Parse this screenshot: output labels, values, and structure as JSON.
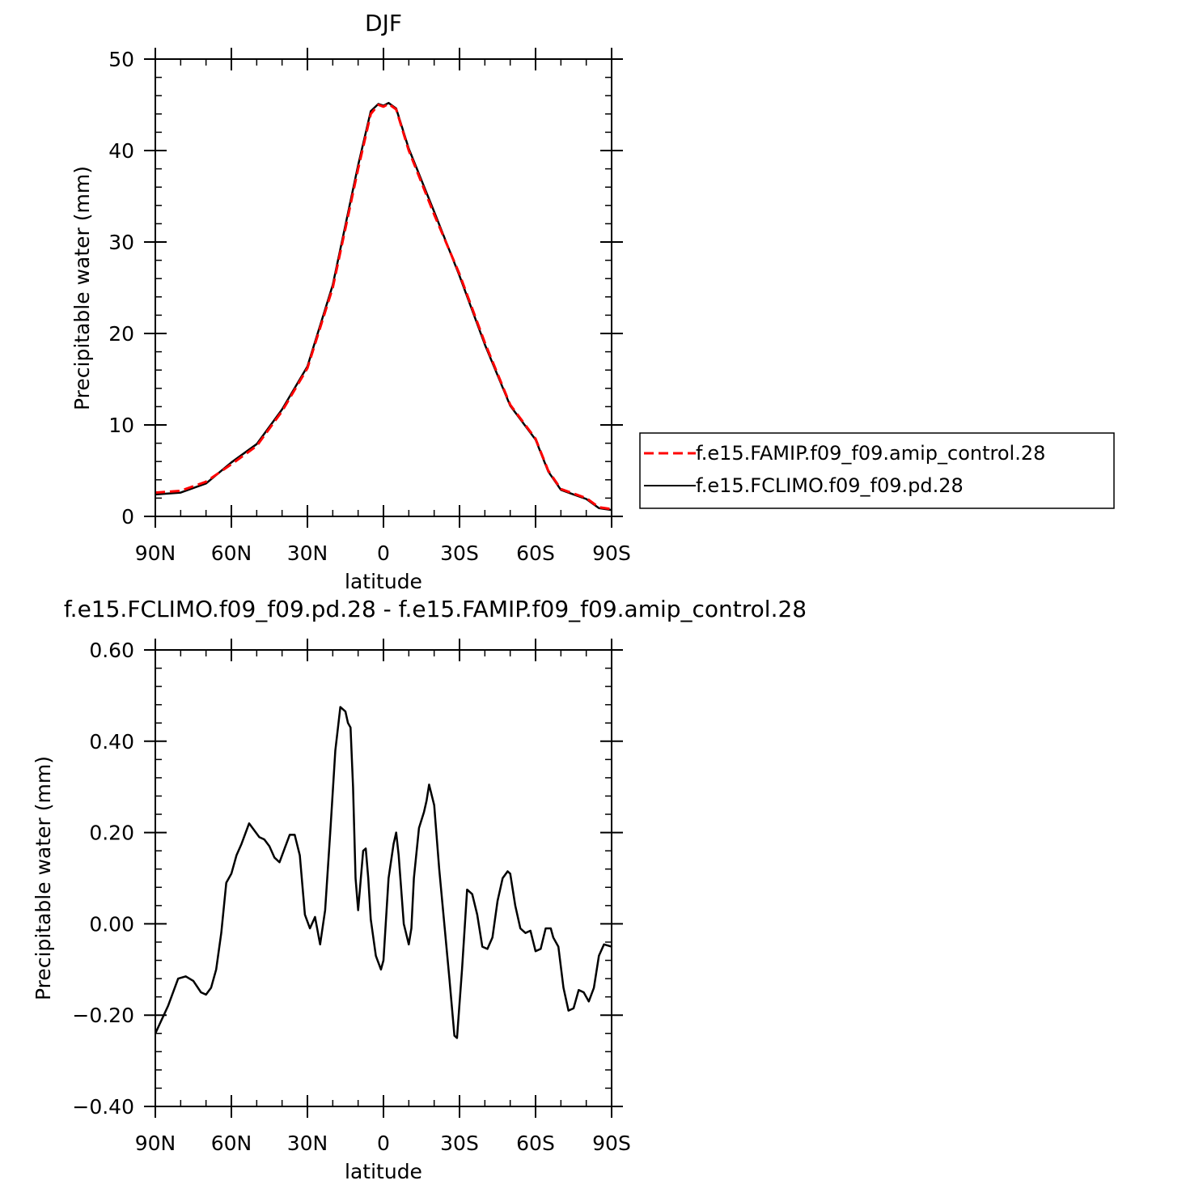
{
  "chart_data": [
    {
      "type": "line",
      "title": "DJF",
      "xlabel": "latitude",
      "ylabel": "Precipitable water (mm)",
      "xlim": [
        90,
        -90
      ],
      "ylim": [
        0,
        50
      ],
      "xticks": [
        90,
        60,
        30,
        0,
        -30,
        -60,
        -90
      ],
      "xtick_labels": [
        "90N",
        "60N",
        "30N",
        "0",
        "30S",
        "60S",
        "90S"
      ],
      "yticks": [
        0,
        10,
        20,
        30,
        40,
        50
      ],
      "ytick_labels": [
        "0",
        "10",
        "20",
        "30",
        "40",
        "50"
      ],
      "legend_position": "right",
      "series": [
        {
          "name": "f.e15.FAMIP.f09_f09.amip_control.28",
          "color": "#ff0000",
          "style": "dashed",
          "x": [
            90,
            80,
            70,
            60,
            50,
            40,
            30,
            20,
            10,
            5,
            2,
            0,
            -2,
            -5,
            -10,
            -20,
            -30,
            -40,
            -50,
            -60,
            -65,
            -70,
            -75,
            -80,
            -85,
            -90
          ],
          "y": [
            2.6,
            2.8,
            3.8,
            5.7,
            7.7,
            11.5,
            16.2,
            25.0,
            38.0,
            44.0,
            45.0,
            44.8,
            45.1,
            44.5,
            40.0,
            33.0,
            26.5,
            19.0,
            12.2,
            8.5,
            5.0,
            3.0,
            2.5,
            2.0,
            1.0,
            0.8
          ]
        },
        {
          "name": "f.e15.FCLIMO.f09_f09.pd.28",
          "color": "#000000",
          "style": "solid",
          "x": [
            90,
            80,
            70,
            60,
            50,
            40,
            30,
            20,
            10,
            5,
            2,
            0,
            -2,
            -5,
            -10,
            -20,
            -30,
            -40,
            -50,
            -60,
            -65,
            -70,
            -75,
            -80,
            -85,
            -90
          ],
          "y": [
            2.4,
            2.6,
            3.6,
            5.9,
            7.9,
            11.7,
            16.4,
            25.3,
            38.4,
            44.3,
            45.1,
            44.9,
            45.2,
            44.6,
            40.2,
            33.3,
            26.3,
            18.8,
            12.1,
            8.4,
            4.9,
            2.9,
            2.4,
            1.9,
            0.9,
            0.7
          ]
        }
      ]
    },
    {
      "type": "line",
      "title": "f.e15.FCLIMO.f09_f09.pd.28 - f.e15.FAMIP.f09_f09.amip_control.28",
      "xlabel": "latitude",
      "ylabel": "Precipitable water (mm)",
      "xlim": [
        90,
        -90
      ],
      "ylim": [
        -0.4,
        0.6
      ],
      "xticks": [
        90,
        60,
        30,
        0,
        -30,
        -60,
        -90
      ],
      "xtick_labels": [
        "90N",
        "60N",
        "30N",
        "0",
        "30S",
        "60S",
        "90S"
      ],
      "yticks": [
        -0.4,
        -0.2,
        0.0,
        0.2,
        0.4,
        0.6
      ],
      "ytick_labels": [
        "−0.40",
        "−0.20",
        "0.00",
        "0.20",
        "0.40",
        "0.60"
      ],
      "series": [
        {
          "color": "#000000",
          "style": "solid",
          "x": [
            90,
            85,
            81,
            78,
            75,
            72,
            70,
            68,
            66,
            64,
            62,
            60,
            58,
            56,
            53,
            51,
            49,
            47,
            45,
            43,
            41,
            39,
            37,
            35,
            33,
            31,
            29,
            27,
            25,
            23,
            21,
            19,
            17,
            15,
            14,
            13,
            12,
            11,
            10,
            8,
            7,
            6,
            5,
            3,
            1,
            0,
            -2,
            -4,
            -5,
            -6,
            -8,
            -10,
            -11,
            -12,
            -14,
            -16,
            -17,
            -18,
            -20,
            -22,
            -24,
            -26,
            -28,
            -29,
            -31,
            -33,
            -35,
            -37,
            -39,
            -41,
            -43,
            -45,
            -47,
            -49,
            -50,
            -52,
            -54,
            -56,
            -58,
            -60,
            -62,
            -64,
            -66,
            -67,
            -69,
            -71,
            -73,
            -75,
            -77,
            -79,
            -81,
            -83,
            -85,
            -87,
            -90
          ],
          "y": [
            -0.24,
            -0.18,
            -0.12,
            -0.115,
            -0.125,
            -0.15,
            -0.155,
            -0.14,
            -0.1,
            -0.02,
            0.09,
            0.11,
            0.15,
            0.175,
            0.22,
            0.205,
            0.19,
            0.185,
            0.17,
            0.145,
            0.135,
            0.165,
            0.195,
            0.195,
            0.15,
            0.02,
            -0.01,
            0.015,
            -0.045,
            0.03,
            0.2,
            0.38,
            0.475,
            0.465,
            0.44,
            0.43,
            0.3,
            0.1,
            0.03,
            0.16,
            0.165,
            0.1,
            0.01,
            -0.07,
            -0.1,
            -0.08,
            0.1,
            0.175,
            0.2,
            0.15,
            0.0,
            -0.045,
            -0.01,
            0.1,
            0.21,
            0.245,
            0.27,
            0.305,
            0.26,
            0.12,
            0.0,
            -0.12,
            -0.245,
            -0.25,
            -0.1,
            0.075,
            0.065,
            0.02,
            -0.05,
            -0.055,
            -0.03,
            0.05,
            0.1,
            0.115,
            0.11,
            0.04,
            -0.01,
            -0.02,
            -0.015,
            -0.06,
            -0.055,
            -0.01,
            -0.01,
            -0.03,
            -0.05,
            -0.14,
            -0.19,
            -0.185,
            -0.145,
            -0.15,
            -0.17,
            -0.14,
            -0.07,
            -0.045,
            -0.05
          ]
        }
      ]
    }
  ]
}
